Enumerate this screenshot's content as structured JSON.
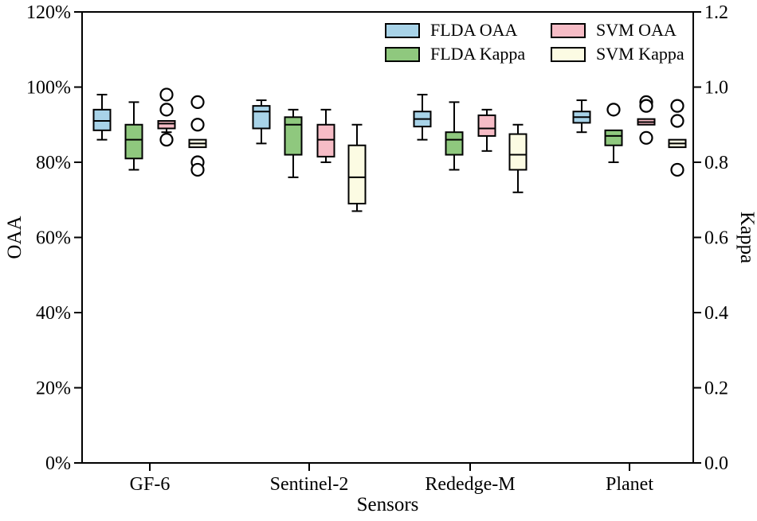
{
  "chart_data": {
    "type": "boxplot",
    "title": "",
    "xlabel": "Sensors",
    "ylabel_left": "OAA",
    "ylabel_right": "Kappa",
    "categories": [
      "GF-6",
      "Sentinel-2",
      "Rededge-M",
      "Planet"
    ],
    "y_left": {
      "min": 0,
      "max": 120,
      "unit": "%",
      "tick_labels": [
        "0%",
        "20%",
        "40%",
        "60%",
        "80%",
        "100%",
        "120%"
      ]
    },
    "y_right": {
      "min": 0.0,
      "max": 1.2,
      "tick_labels": [
        "0.0",
        "0.2",
        "0.4",
        "0.6",
        "0.8",
        "1.0",
        "1.2"
      ]
    },
    "grid": false,
    "legend": {
      "position": "top-right-inside",
      "columns": 2
    },
    "style": {
      "frame_color": "#000000",
      "median_color": "#000000",
      "outlier_fill": "#ffffff",
      "outlier_stroke": "#000000"
    },
    "series": [
      {
        "name": "FLDA OAA",
        "unit": "percent",
        "color": "#a8d3e8",
        "boxes": [
          {
            "whisker_low": 86,
            "q1": 88.5,
            "median": 91,
            "q3": 94,
            "whisker_high": 98,
            "outliers": []
          },
          {
            "whisker_low": 85,
            "q1": 89,
            "median": 93.5,
            "q3": 95,
            "whisker_high": 96.5,
            "outliers": []
          },
          {
            "whisker_low": 86,
            "q1": 89.5,
            "median": 91.5,
            "q3": 93.5,
            "whisker_high": 98,
            "outliers": []
          },
          {
            "whisker_low": 88,
            "q1": 90.5,
            "median": 92,
            "q3": 93.5,
            "whisker_high": 96.5,
            "outliers": []
          }
        ]
      },
      {
        "name": "FLDA Kappa",
        "unit": "kappa",
        "color": "#8fc87e",
        "boxes": [
          {
            "whisker_low": 0.78,
            "q1": 0.81,
            "median": 0.86,
            "q3": 0.9,
            "whisker_high": 0.96,
            "outliers": []
          },
          {
            "whisker_low": 0.76,
            "q1": 0.82,
            "median": 0.9,
            "q3": 0.92,
            "whisker_high": 0.94,
            "outliers": []
          },
          {
            "whisker_low": 0.78,
            "q1": 0.82,
            "median": 0.86,
            "q3": 0.88,
            "whisker_high": 0.96,
            "outliers": []
          },
          {
            "whisker_low": 0.8,
            "q1": 0.845,
            "median": 0.87,
            "q3": 0.885,
            "whisker_high": 0.885,
            "outliers": [
              0.94
            ]
          }
        ]
      },
      {
        "name": "SVM OAA",
        "unit": "percent",
        "color": "#f6bcc6",
        "boxes": [
          {
            "whisker_low": 88,
            "q1": 89,
            "median": 90.3,
            "q3": 91,
            "whisker_high": 91,
            "outliers": [
              98,
              94,
              86
            ]
          },
          {
            "whisker_low": 80,
            "q1": 81.5,
            "median": 86,
            "q3": 90,
            "whisker_high": 94,
            "outliers": []
          },
          {
            "whisker_low": 83,
            "q1": 87,
            "median": 89,
            "q3": 92.5,
            "whisker_high": 94,
            "outliers": []
          },
          {
            "whisker_low": 90,
            "q1": 90,
            "median": 90.7,
            "q3": 91.5,
            "whisker_high": 91.5,
            "outliers": [
              96,
              95,
              86.5
            ]
          }
        ]
      },
      {
        "name": "SVM Kappa",
        "unit": "kappa",
        "color": "#fcfbe3",
        "boxes": [
          {
            "whisker_low": 0.84,
            "q1": 0.84,
            "median": 0.85,
            "q3": 0.86,
            "whisker_high": 0.86,
            "outliers": [
              0.96,
              0.9,
              0.8,
              0.78
            ]
          },
          {
            "whisker_low": 0.67,
            "q1": 0.69,
            "median": 0.76,
            "q3": 0.845,
            "whisker_high": 0.9,
            "outliers": []
          },
          {
            "whisker_low": 0.72,
            "q1": 0.78,
            "median": 0.82,
            "q3": 0.875,
            "whisker_high": 0.9,
            "outliers": []
          },
          {
            "whisker_low": 0.84,
            "q1": 0.84,
            "median": 0.85,
            "q3": 0.86,
            "whisker_high": 0.86,
            "outliers": [
              0.95,
              0.91,
              0.78
            ]
          }
        ]
      }
    ]
  }
}
